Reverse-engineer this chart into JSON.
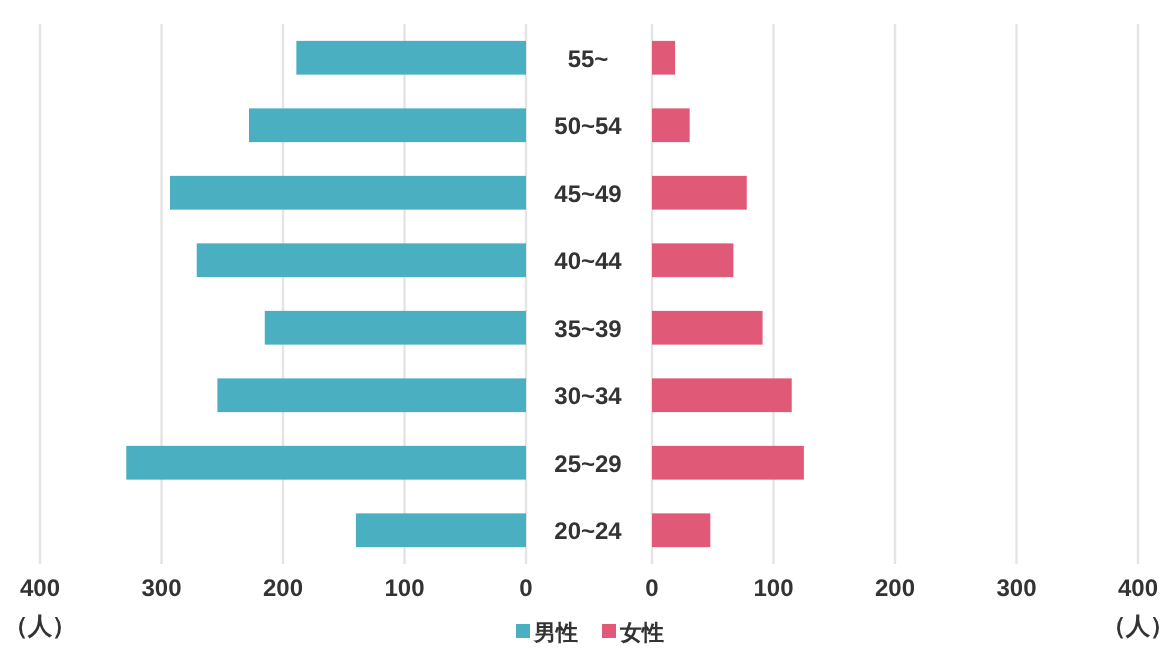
{
  "chart_data": [
    {
      "type": "bar",
      "orientation": "horizontal",
      "categories": [
        "55~",
        "50~54",
        "45~49",
        "40~44",
        "35~39",
        "30~34",
        "25~29",
        "20~24"
      ],
      "series": [
        {
          "name": "男性",
          "color": "#4aafc0",
          "values": [
            189,
            228,
            293,
            271,
            215,
            254,
            329,
            140
          ]
        }
      ],
      "xlim": [
        400,
        0
      ],
      "xticks": [
        400,
        300,
        200,
        100,
        0
      ],
      "xlabel": "（人）",
      "grid": "x",
      "legend": "bottom",
      "tick_labels": "x"
    },
    {
      "type": "bar",
      "orientation": "horizontal",
      "categories": [
        "55~",
        "50~54",
        "45~49",
        "40~44",
        "35~39",
        "30~34",
        "25~29",
        "20~24"
      ],
      "series": [
        {
          "name": "女性",
          "color": "#e05a78",
          "values": [
            19,
            31,
            78,
            67,
            91,
            115,
            125,
            48
          ]
        }
      ],
      "xlim": [
        0,
        400
      ],
      "xticks": [
        0,
        100,
        200,
        300,
        400
      ],
      "xlabel": "（人）",
      "grid": "x",
      "legend": "bottom"
    }
  ]
}
